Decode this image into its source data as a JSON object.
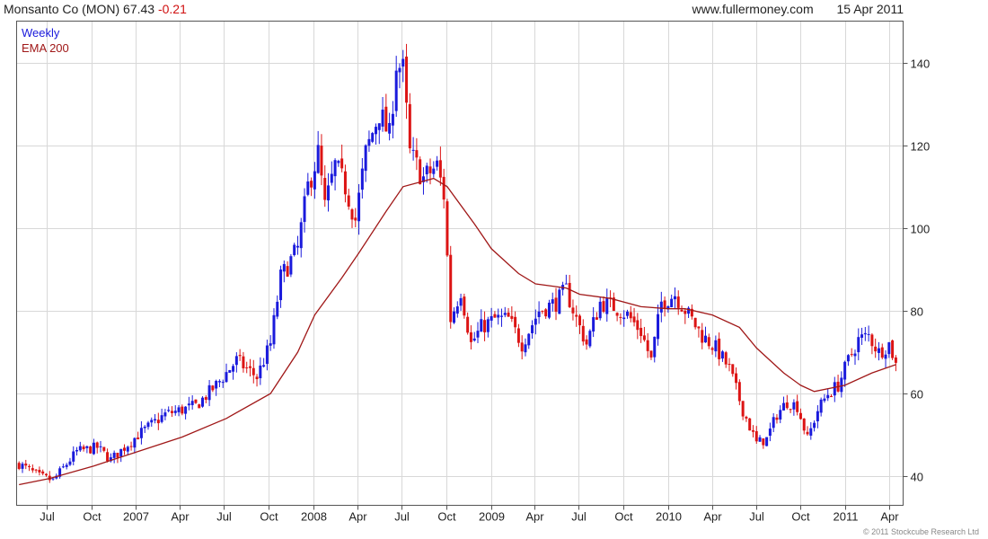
{
  "header": {
    "symbol": "Monsanto Co (MON) 67.43",
    "change": "-0.21",
    "site": "www.fullermoney.com",
    "date": "15 Apr 2011"
  },
  "copyright": "© 2011 Stockcube Research Ltd",
  "colors": {
    "up": "#1a1adc",
    "down": "#dc1414",
    "ema": "#a01818",
    "grid": "#d8d8d8",
    "frame": "#555555"
  },
  "chart_data": {
    "type": "candlestick",
    "title": "Monsanto Co (MON) 67.43 -0.21",
    "frequency": "Weekly",
    "legend": [
      "Weekly",
      "EMA 200"
    ],
    "legend_position": "top-left",
    "grid": true,
    "y_axis_side": "right",
    "ylim": [
      33,
      150
    ],
    "yticks": [
      40,
      60,
      80,
      100,
      120,
      140
    ],
    "xlim": [
      "2006-04-30",
      "2011-04-30"
    ],
    "xticks": [
      {
        "date": "2006-07-01",
        "label": "Jul"
      },
      {
        "date": "2006-10-01",
        "label": "Oct"
      },
      {
        "date": "2007-01-01",
        "label": "2007"
      },
      {
        "date": "2007-04-01",
        "label": "Apr"
      },
      {
        "date": "2007-07-01",
        "label": "Jul"
      },
      {
        "date": "2007-10-01",
        "label": "Oct"
      },
      {
        "date": "2008-01-01",
        "label": "2008"
      },
      {
        "date": "2008-04-01",
        "label": "Apr"
      },
      {
        "date": "2008-07-01",
        "label": "Jul"
      },
      {
        "date": "2008-10-01",
        "label": "Oct"
      },
      {
        "date": "2009-01-01",
        "label": "2009"
      },
      {
        "date": "2009-04-01",
        "label": "Apr"
      },
      {
        "date": "2009-07-01",
        "label": "Jul"
      },
      {
        "date": "2009-10-01",
        "label": "Oct"
      },
      {
        "date": "2010-01-01",
        "label": "2010"
      },
      {
        "date": "2010-04-01",
        "label": "Apr"
      },
      {
        "date": "2010-07-01",
        "label": "Jul"
      },
      {
        "date": "2010-10-01",
        "label": "Oct"
      },
      {
        "date": "2011-01-01",
        "label": "2011"
      },
      {
        "date": "2011-04-01",
        "label": "Apr"
      }
    ],
    "close_anchors": [
      {
        "date": "2006-05-05",
        "close": 43
      },
      {
        "date": "2006-06-16",
        "close": 40
      },
      {
        "date": "2006-07-14",
        "close": 39
      },
      {
        "date": "2006-09-01",
        "close": 46
      },
      {
        "date": "2006-10-13",
        "close": 47
      },
      {
        "date": "2006-11-10",
        "close": 44
      },
      {
        "date": "2007-01-05",
        "close": 50
      },
      {
        "date": "2007-03-02",
        "close": 55
      },
      {
        "date": "2007-05-04",
        "close": 57
      },
      {
        "date": "2007-06-15",
        "close": 62
      },
      {
        "date": "2007-07-27",
        "close": 68
      },
      {
        "date": "2007-09-07",
        "close": 64
      },
      {
        "date": "2007-10-05",
        "close": 72
      },
      {
        "date": "2007-10-26",
        "close": 88
      },
      {
        "date": "2007-11-30",
        "close": 95
      },
      {
        "date": "2007-12-21",
        "close": 110
      },
      {
        "date": "2008-01-11",
        "close": 118
      },
      {
        "date": "2008-01-25",
        "close": 105
      },
      {
        "date": "2008-02-15",
        "close": 115
      },
      {
        "date": "2008-03-07",
        "close": 110
      },
      {
        "date": "2008-03-28",
        "close": 102
      },
      {
        "date": "2008-04-18",
        "close": 118
      },
      {
        "date": "2008-05-16",
        "close": 128
      },
      {
        "date": "2008-06-06",
        "close": 122
      },
      {
        "date": "2008-06-20",
        "close": 140
      },
      {
        "date": "2008-07-04",
        "close": 138
      },
      {
        "date": "2008-07-18",
        "close": 118
      },
      {
        "date": "2008-08-15",
        "close": 112
      },
      {
        "date": "2008-09-12",
        "close": 115
      },
      {
        "date": "2008-09-26",
        "close": 108
      },
      {
        "date": "2008-10-10",
        "close": 78
      },
      {
        "date": "2008-10-31",
        "close": 85
      },
      {
        "date": "2008-11-21",
        "close": 72
      },
      {
        "date": "2008-12-12",
        "close": 76
      },
      {
        "date": "2009-01-09",
        "close": 78
      },
      {
        "date": "2009-02-06",
        "close": 78
      },
      {
        "date": "2009-03-06",
        "close": 72
      },
      {
        "date": "2009-04-10",
        "close": 80
      },
      {
        "date": "2009-05-15",
        "close": 82
      },
      {
        "date": "2009-06-05",
        "close": 85
      },
      {
        "date": "2009-06-26",
        "close": 78
      },
      {
        "date": "2009-07-17",
        "close": 72
      },
      {
        "date": "2009-08-14",
        "close": 82
      },
      {
        "date": "2009-09-11",
        "close": 81
      },
      {
        "date": "2009-10-09",
        "close": 79
      },
      {
        "date": "2009-11-06",
        "close": 75
      },
      {
        "date": "2009-11-27",
        "close": 68
      },
      {
        "date": "2009-12-18",
        "close": 82
      },
      {
        "date": "2010-01-15",
        "close": 84
      },
      {
        "date": "2010-02-12",
        "close": 79
      },
      {
        "date": "2010-03-12",
        "close": 74
      },
      {
        "date": "2010-04-09",
        "close": 71
      },
      {
        "date": "2010-05-07",
        "close": 66
      },
      {
        "date": "2010-06-04",
        "close": 56
      },
      {
        "date": "2010-07-02",
        "close": 48
      },
      {
        "date": "2010-07-23",
        "close": 49
      },
      {
        "date": "2010-08-13",
        "close": 55
      },
      {
        "date": "2010-09-03",
        "close": 58
      },
      {
        "date": "2010-09-24",
        "close": 57
      },
      {
        "date": "2010-10-15",
        "close": 49
      },
      {
        "date": "2010-11-05",
        "close": 56
      },
      {
        "date": "2010-11-26",
        "close": 60
      },
      {
        "date": "2010-12-17",
        "close": 62
      },
      {
        "date": "2011-01-07",
        "close": 68
      },
      {
        "date": "2011-01-28",
        "close": 73
      },
      {
        "date": "2011-02-18",
        "close": 74
      },
      {
        "date": "2011-03-11",
        "close": 70
      },
      {
        "date": "2011-04-01",
        "close": 72
      },
      {
        "date": "2011-04-15",
        "close": 67.43
      }
    ],
    "ema_200": [
      {
        "date": "2006-05-05",
        "value": 38
      },
      {
        "date": "2006-07-07",
        "value": 39.5
      },
      {
        "date": "2006-10-06",
        "value": 42.5
      },
      {
        "date": "2007-01-05",
        "value": 46
      },
      {
        "date": "2007-04-06",
        "value": 49.5
      },
      {
        "date": "2007-07-06",
        "value": 54
      },
      {
        "date": "2007-10-05",
        "value": 60
      },
      {
        "date": "2007-11-30",
        "value": 70
      },
      {
        "date": "2008-01-04",
        "value": 79
      },
      {
        "date": "2008-02-29",
        "value": 88
      },
      {
        "date": "2008-04-04",
        "value": 94
      },
      {
        "date": "2008-05-30",
        "value": 104
      },
      {
        "date": "2008-07-04",
        "value": 110
      },
      {
        "date": "2008-09-05",
        "value": 112
      },
      {
        "date": "2008-10-03",
        "value": 110
      },
      {
        "date": "2008-11-28",
        "value": 101
      },
      {
        "date": "2009-01-02",
        "value": 95
      },
      {
        "date": "2009-02-27",
        "value": 89
      },
      {
        "date": "2009-04-03",
        "value": 86.5
      },
      {
        "date": "2009-06-05",
        "value": 85.5
      },
      {
        "date": "2009-07-03",
        "value": 84
      },
      {
        "date": "2009-09-04",
        "value": 83
      },
      {
        "date": "2009-11-06",
        "value": 81
      },
      {
        "date": "2010-01-01",
        "value": 80.5
      },
      {
        "date": "2010-02-05",
        "value": 80.5
      },
      {
        "date": "2010-04-02",
        "value": 79
      },
      {
        "date": "2010-05-28",
        "value": 76
      },
      {
        "date": "2010-07-02",
        "value": 71
      },
      {
        "date": "2010-08-27",
        "value": 65
      },
      {
        "date": "2010-10-01",
        "value": 62
      },
      {
        "date": "2010-10-29",
        "value": 60.5
      },
      {
        "date": "2010-12-31",
        "value": 62
      },
      {
        "date": "2011-02-25",
        "value": 65
      },
      {
        "date": "2011-04-15",
        "value": 67
      }
    ]
  }
}
